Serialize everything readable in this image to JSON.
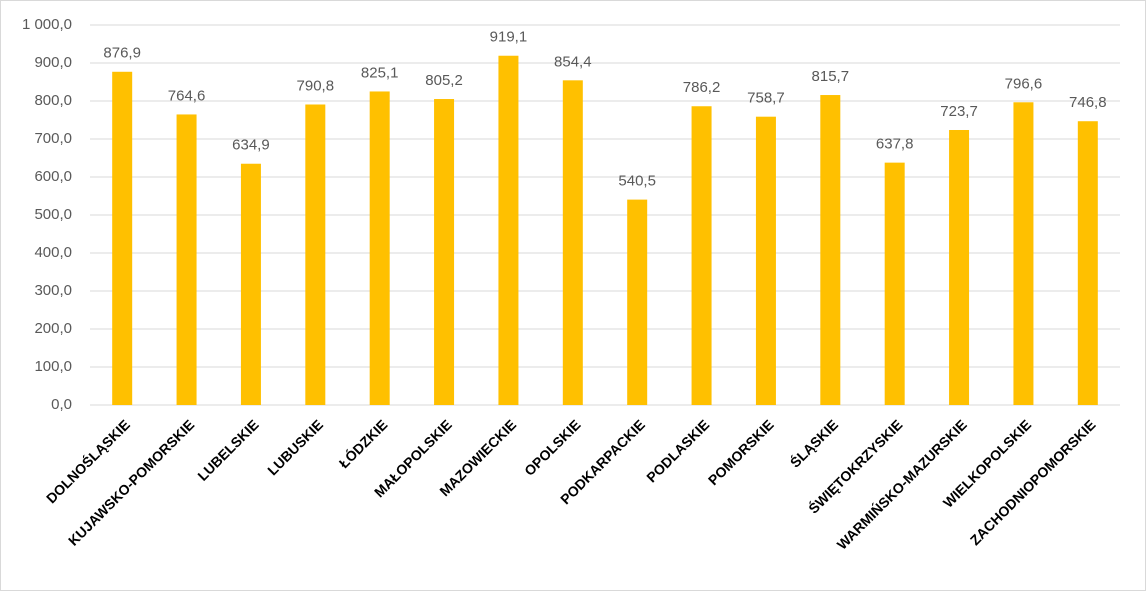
{
  "chart_data": {
    "type": "bar",
    "categories": [
      "DOLNOŚLĄSKIE",
      "KUJAWSKO-POMORSKIE",
      "LUBELSKIE",
      "LUBUSKIE",
      "ŁÓDZKIE",
      "MAŁOPOLSKIE",
      "MAZOWIECKIE",
      "OPOLSKIE",
      "PODKARPACKIE",
      "PODLASKIE",
      "POMORSKIE",
      "ŚLĄSKIE",
      "ŚWIĘTOKRZYSKIE",
      "WARMIŃSKO-MAZURSKIE",
      "WIELKOPOLSKIE",
      "ZACHODNIOPOMORSKIE"
    ],
    "values": [
      876.9,
      764.6,
      634.9,
      790.8,
      825.1,
      805.2,
      919.1,
      854.4,
      540.5,
      786.2,
      758.7,
      815.7,
      637.8,
      723.7,
      796.6,
      746.8
    ],
    "value_labels": [
      "876,9",
      "764,6",
      "634,9",
      "790,8",
      "825,1",
      "805,2",
      "919,1",
      "854,4",
      "540,5",
      "786,2",
      "758,7",
      "815,7",
      "637,8",
      "723,7",
      "796,6",
      "746,8"
    ],
    "color": "#ffc000",
    "ylim": [
      0,
      1000
    ],
    "yticks": [
      {
        "value": 0,
        "label": "0,0"
      },
      {
        "value": 100,
        "label": "100,0"
      },
      {
        "value": 200,
        "label": "200,0"
      },
      {
        "value": 300,
        "label": "300,0"
      },
      {
        "value": 400,
        "label": "400,0"
      },
      {
        "value": 500,
        "label": "500,0"
      },
      {
        "value": 600,
        "label": "600,0"
      },
      {
        "value": 700,
        "label": "700,0"
      },
      {
        "value": 800,
        "label": "800,0"
      },
      {
        "value": 900,
        "label": "900,0"
      },
      {
        "value": 1000,
        "label": "1 000,0"
      }
    ],
    "grid": true
  }
}
